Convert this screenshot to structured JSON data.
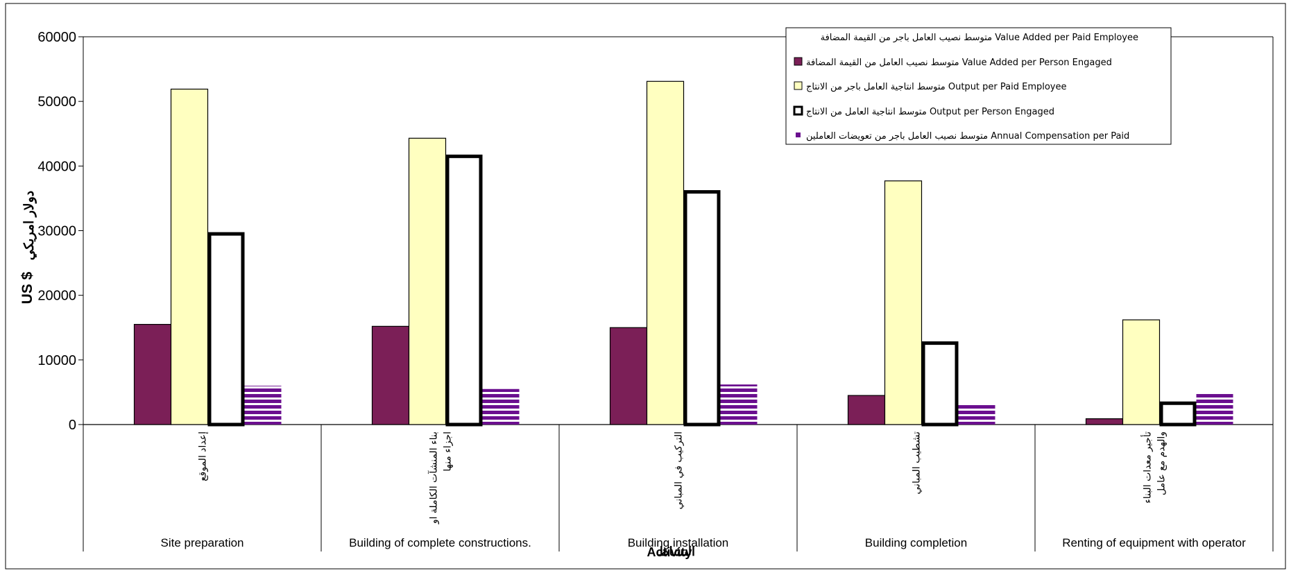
{
  "chart_data": {
    "type": "bar",
    "ylim": [
      0,
      60000
    ],
    "yticks": [
      0,
      10000,
      20000,
      30000,
      40000,
      50000,
      60000
    ],
    "ylabel_en": "US $",
    "ylabel_ar": "دولار امريكي",
    "xlabel_en": "Activity",
    "xlabel_ar": "النشاط",
    "categories": [
      {
        "en": "Site preparation",
        "ar": [
          "إعداد الموقع"
        ]
      },
      {
        "en": "Building of complete constructions.",
        "ar": [
          "بناء المنشآت الكاملة او",
          "اجزاء منها"
        ]
      },
      {
        "en": "Building installation",
        "ar": [
          "التركيب في المباني"
        ]
      },
      {
        "en": "Building completion",
        "ar": [
          "تشطيب المباني"
        ]
      },
      {
        "en": "Renting of equipment with operator",
        "ar": [
          "تأجير معدات البناء",
          "والهدم مع عامل"
        ]
      }
    ],
    "series": [
      {
        "name": "متوسط نصيب العامل من القيمة المضافة Value Added per Person Engaged",
        "style": "solid",
        "color": "#7B1F57",
        "values": [
          15500,
          15200,
          15000,
          4500,
          900
        ]
      },
      {
        "name": "متوسط انتاجية العامل باجر من الانتاج Output per Paid Employee",
        "style": "solid",
        "color": "#FFFFC0",
        "values": [
          51900,
          44300,
          53100,
          37700,
          16200
        ]
      },
      {
        "name": "متوسط انتاجية العامل من الانتاج Output per Person Engaged",
        "style": "outline",
        "color": "#FFFFFF",
        "values": [
          29500,
          41500,
          36000,
          12600,
          3300
        ]
      },
      {
        "name": "متوسط نصيب العامل باجر من تعويضات العاملين Annual Compensation per Paid",
        "style": "striped",
        "color": "#6B0F8F",
        "values": [
          6000,
          5500,
          6200,
          3200,
          4800
        ]
      }
    ],
    "legend_header": "متوسط نصيب العامل باجر من القيمة المضافة Value Added per Paid Employee",
    "legend_position": "top-right",
    "grid": false
  }
}
